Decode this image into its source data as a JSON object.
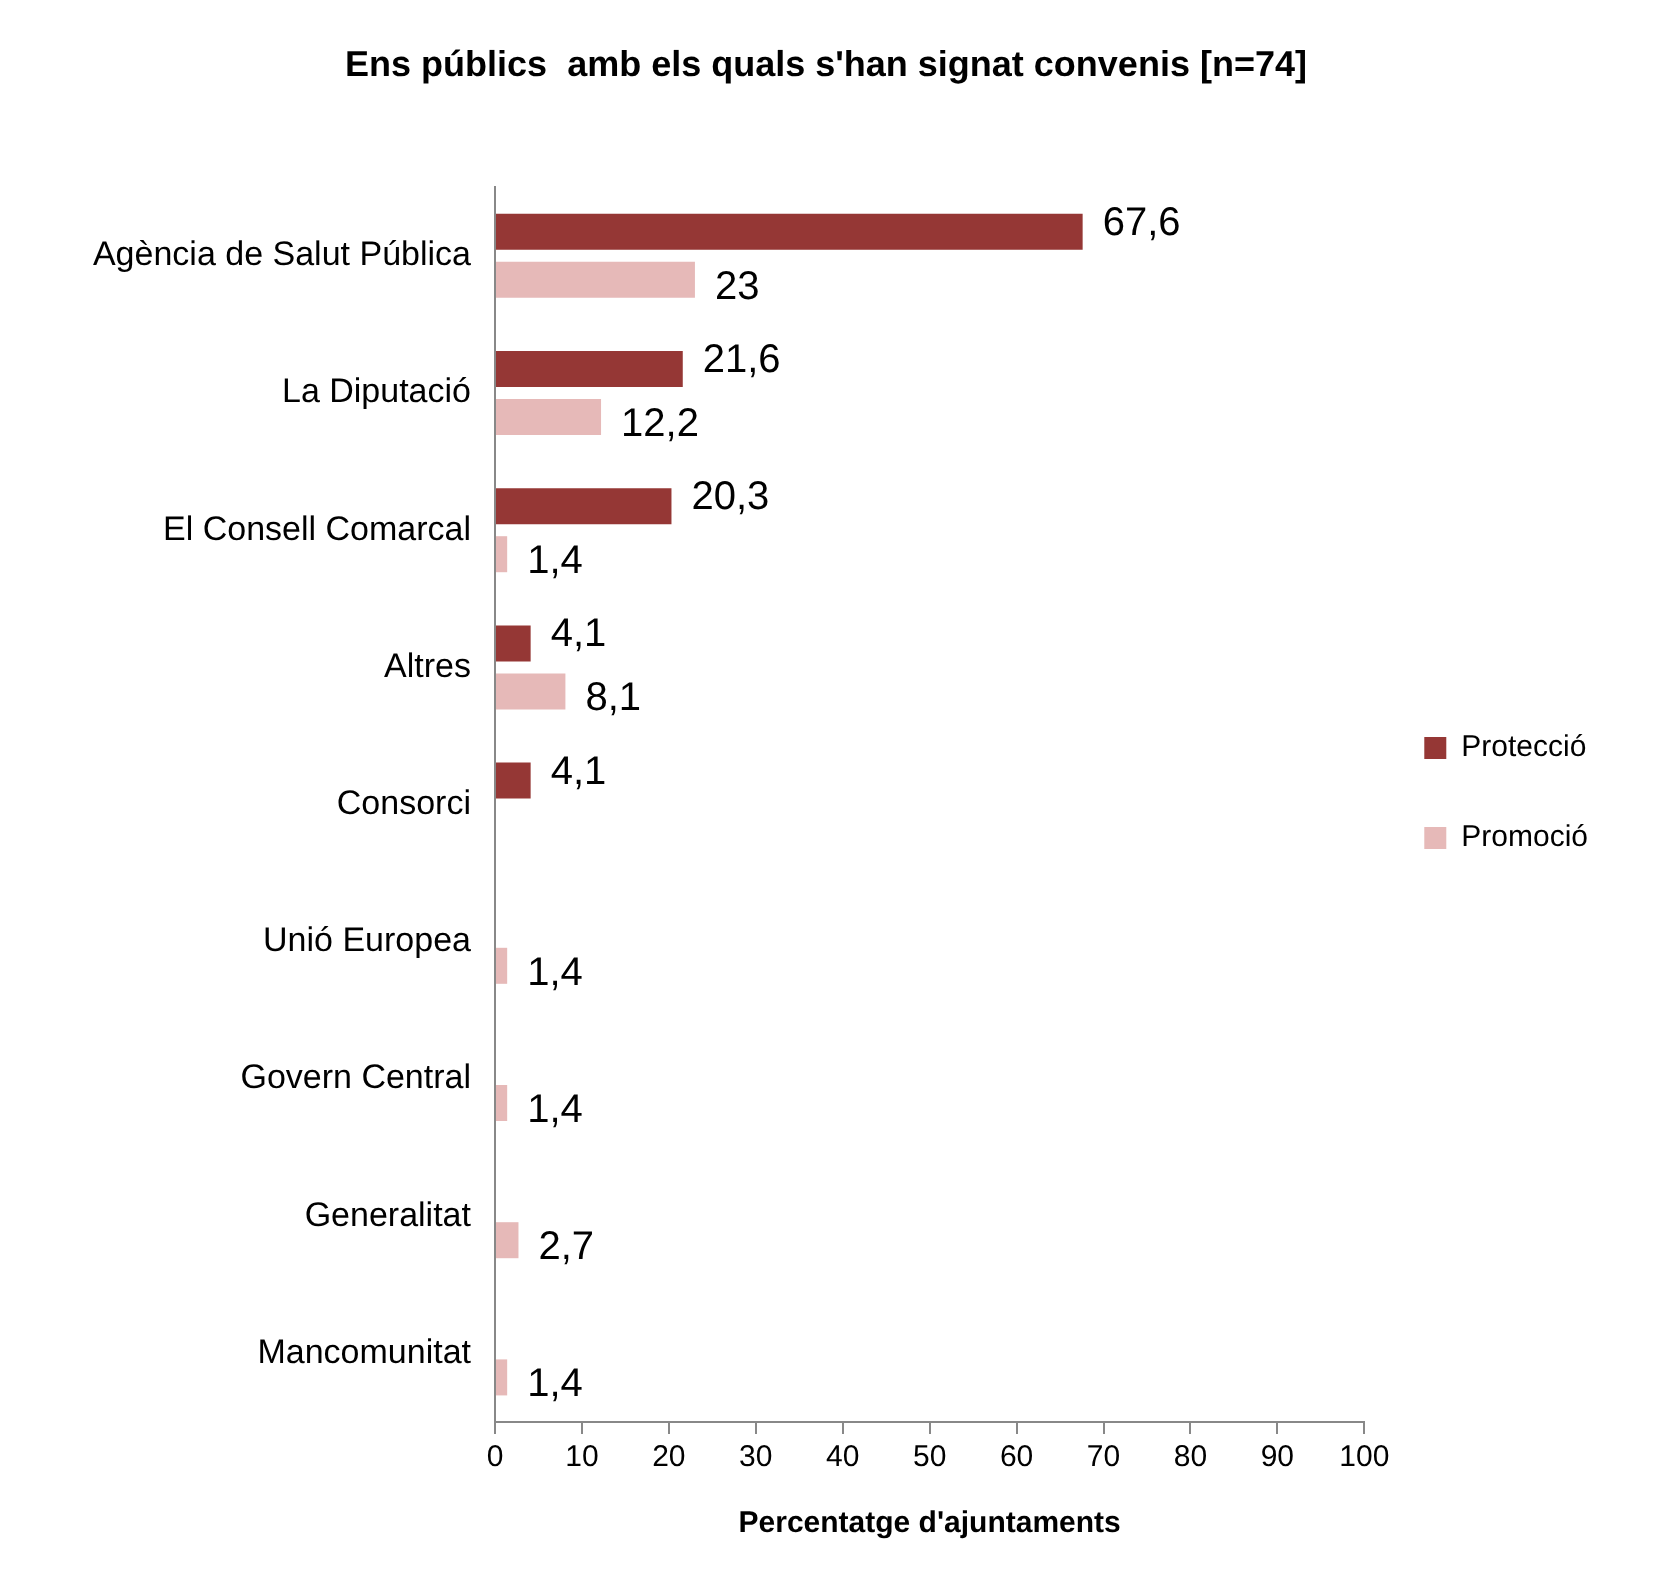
{
  "chart_data": {
    "type": "bar",
    "orientation": "horizontal",
    "title": "Ens públics  amb els quals s'han signat convenis [n=74]",
    "xlabel": "Percentatge d'ajuntaments",
    "categories": [
      "Agència de Salut Pública",
      "La Diputació",
      "El Consell Comarcal",
      "Altres",
      "Consorci",
      "Unió Europea",
      "Govern Central",
      "Generalitat",
      "Mancomunitat"
    ],
    "series": [
      {
        "name": "Protecció",
        "color": "#953735",
        "values": [
          67.6,
          21.6,
          20.3,
          4.1,
          4.1,
          null,
          null,
          null,
          null
        ],
        "value_labels": [
          "67,6",
          "21,6",
          "20,3",
          "4,1",
          "4,1",
          null,
          null,
          null,
          null
        ]
      },
      {
        "name": "Promoció",
        "color": "#e6b9b8",
        "values": [
          23,
          12.2,
          1.4,
          8.1,
          null,
          1.4,
          1.4,
          2.7,
          1.4
        ],
        "value_labels": [
          "23",
          "12,2",
          "1,4",
          "8,1",
          null,
          "1,4",
          "1,4",
          "2,7",
          "1,4"
        ]
      }
    ],
    "xlim": [
      0,
      100
    ],
    "xticks": [
      0,
      10,
      20,
      30,
      40,
      50,
      60,
      70,
      80,
      90,
      100
    ],
    "grid": false,
    "legend": "right"
  }
}
